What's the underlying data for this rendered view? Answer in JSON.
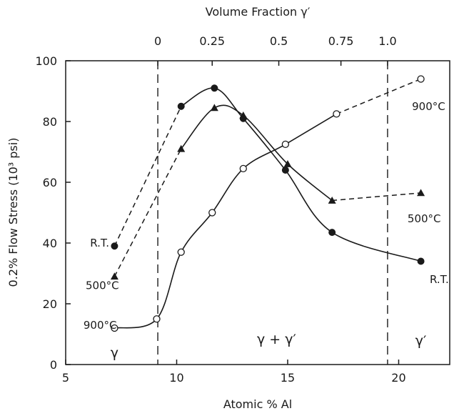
{
  "chart_data": {
    "type": "line",
    "title": "",
    "xlabel": "Atomic % Al",
    "ylabel": "0.2% Flow Stress (10³ psi)",
    "xlim": [
      5,
      22.3
    ],
    "ylim": [
      0,
      100
    ],
    "x_ticks": [
      "5",
      "10",
      "15",
      "20"
    ],
    "x_tick_values": [
      5,
      10,
      15,
      20
    ],
    "y_ticks": [
      "0",
      "20",
      "40",
      "60",
      "80",
      "100"
    ],
    "y_tick_values": [
      0,
      20,
      40,
      60,
      80,
      100
    ],
    "top_axis": {
      "label": "Volume Fraction γ′",
      "ticks": [
        "0",
        "0.25",
        "0.5",
        "0.75",
        "1.0"
      ],
      "tick_positions_at": [
        9.15,
        11.6,
        14.6,
        17.4,
        19.5
      ]
    },
    "phase_boundaries": [
      9.15,
      19.5
    ],
    "regions": [
      {
        "label": "γ",
        "x": 7.2,
        "y": 4
      },
      {
        "label": "γ + γ′",
        "x": 14.5,
        "y": 8.5
      },
      {
        "label": "γ′",
        "x": 21.0,
        "y": 8
      }
    ],
    "series": [
      {
        "name": "R.T.",
        "marker": "filled-circle",
        "points": [
          [
            7.2,
            39
          ],
          [
            10.2,
            85
          ],
          [
            11.7,
            91
          ],
          [
            13.0,
            81
          ],
          [
            14.9,
            64
          ],
          [
            17.0,
            43.5
          ],
          [
            21.0,
            34
          ]
        ],
        "labels": [
          {
            "text": "R.T.",
            "x": 6.1,
            "y": 40
          },
          {
            "text": "R.T.",
            "x": 21.4,
            "y": 28
          }
        ]
      },
      {
        "name": "500°C",
        "marker": "triangle",
        "points": [
          [
            7.2,
            29
          ],
          [
            10.2,
            71
          ],
          [
            11.7,
            84.5
          ],
          [
            13.0,
            82
          ],
          [
            15.0,
            66
          ],
          [
            17.0,
            54
          ],
          [
            21.0,
            56.5
          ]
        ],
        "labels": [
          {
            "text": "500°C",
            "x": 5.9,
            "y": 26
          },
          {
            "text": "500°C",
            "x": 20.4,
            "y": 48
          }
        ]
      },
      {
        "name": "900°C",
        "marker": "open-circle",
        "points": [
          [
            7.2,
            12
          ],
          [
            9.1,
            15
          ],
          [
            10.2,
            37
          ],
          [
            11.6,
            50
          ],
          [
            13.0,
            64.5
          ],
          [
            14.9,
            72.5
          ],
          [
            17.2,
            82.5
          ],
          [
            21.0,
            94
          ]
        ],
        "labels": [
          {
            "text": "900°C",
            "x": 5.8,
            "y": 13
          },
          {
            "text": "900°C",
            "x": 20.6,
            "y": 85
          }
        ]
      }
    ]
  }
}
